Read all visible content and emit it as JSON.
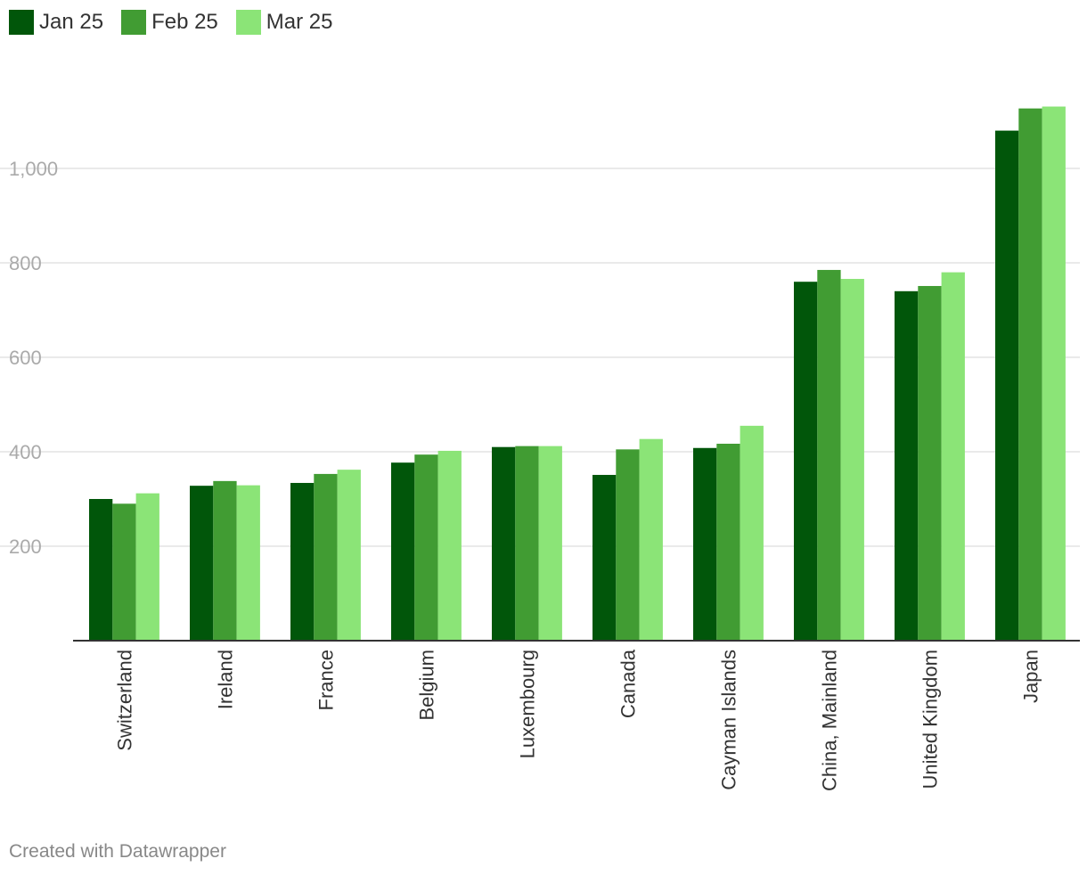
{
  "chart_data": {
    "type": "bar",
    "title": "",
    "xlabel": "",
    "ylabel": "",
    "categories": [
      "Switzerland",
      "Ireland",
      "France",
      "Belgium",
      "Luxembourg",
      "Canada",
      "Cayman Islands",
      "China, Mainland",
      "United Kingdom",
      "Japan"
    ],
    "series": [
      {
        "name": "Jan 25",
        "color": "#01560a",
        "values": [
          300,
          328,
          334,
          377,
          410,
          351,
          408,
          760,
          740,
          1080
        ]
      },
      {
        "name": "Feb 25",
        "color": "#419c33",
        "values": [
          290,
          338,
          353,
          394,
          412,
          405,
          417,
          785,
          751,
          1127
        ]
      },
      {
        "name": "Mar 25",
        "color": "#8be477",
        "values": [
          312,
          329,
          362,
          402,
          412,
          427,
          455,
          766,
          780,
          1131
        ]
      }
    ],
    "ylim": [
      0,
      1150
    ],
    "yticks": [
      200,
      400,
      600,
      800,
      1000
    ],
    "ytick_labels": [
      "200",
      "400",
      "600",
      "800",
      "1,000"
    ],
    "grid": true,
    "legend_position": "top-left"
  },
  "footer": "Created with Datawrapper"
}
